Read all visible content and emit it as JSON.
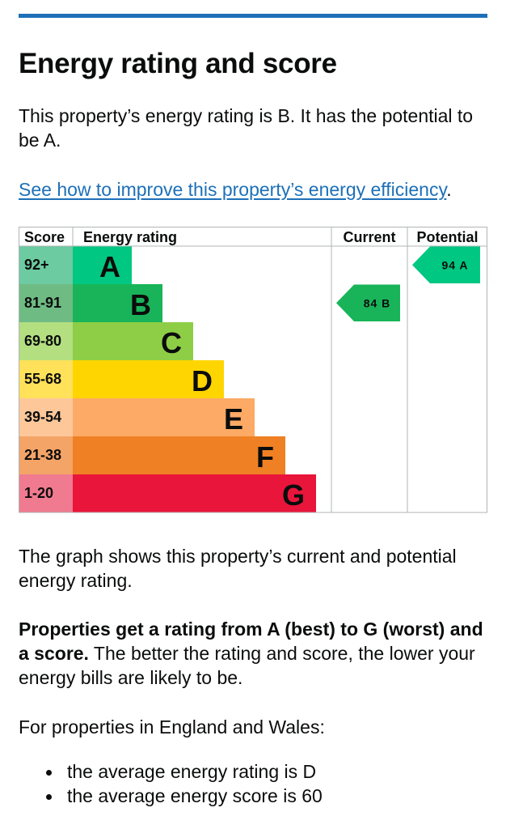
{
  "heading": "Energy rating and score",
  "intro": "This property’s energy rating is B. It has the potential to be A.",
  "improve_link": {
    "text": "See how to improve this property’s energy efficiency",
    "suffix": "."
  },
  "chart_data": {
    "type": "table",
    "headers": {
      "score": "Score",
      "rating": "Energy rating",
      "current": "Current",
      "potential": "Potential"
    },
    "bands": [
      {
        "letter": "A",
        "range": "92+",
        "color": "#00c781",
        "score_color": "#6ccba1"
      },
      {
        "letter": "B",
        "range": "81-91",
        "color": "#19b459",
        "score_color": "#6fbb84"
      },
      {
        "letter": "C",
        "range": "69-80",
        "color": "#8dce46",
        "score_color": "#b3df81"
      },
      {
        "letter": "D",
        "range": "55-68",
        "color": "#ffd500",
        "score_color": "#ffe15a"
      },
      {
        "letter": "E",
        "range": "39-54",
        "color": "#fcaa65",
        "score_color": "#fdc79a"
      },
      {
        "letter": "F",
        "range": "21-38",
        "color": "#ef8023",
        "score_color": "#f4a467"
      },
      {
        "letter": "G",
        "range": "1-20",
        "color": "#e9153b",
        "score_color": "#f07a8f"
      }
    ],
    "current": {
      "score": 84,
      "letter": "B",
      "label": "84 B",
      "color": "#19b459"
    },
    "potential": {
      "score": 94,
      "letter": "A",
      "label": "94 A",
      "color": "#00c781"
    }
  },
  "graph_text": "The graph shows this property’s current and potential energy rating.",
  "ratings_text_bold": "Properties get a rating from A (best) to G (worst) and a score.",
  "ratings_text_rest": " The better the rating and score, the lower your energy bills are likely to be.",
  "regional_intro": "For properties in England and Wales:",
  "bullets": [
    "the average energy rating is D",
    "the average energy score is 60"
  ]
}
